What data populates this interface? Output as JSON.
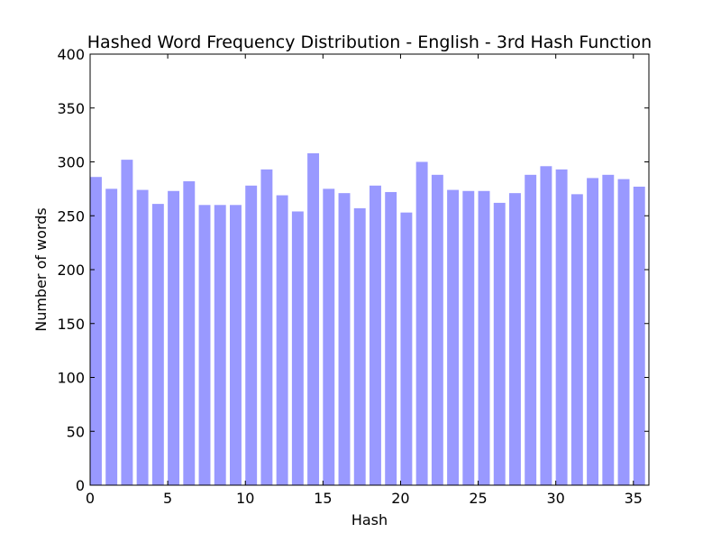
{
  "chart_data": {
    "type": "bar",
    "title": "Hashed Word Frequency Distribution - English - 3rd Hash Function",
    "xlabel": "Hash",
    "ylabel": "Number of words",
    "xlim": [
      0,
      36
    ],
    "ylim": [
      0,
      400
    ],
    "xticks": [
      0,
      5,
      10,
      15,
      20,
      25,
      30,
      35
    ],
    "yticks": [
      0,
      50,
      100,
      150,
      200,
      250,
      300,
      350,
      400
    ],
    "bar_width": 0.75,
    "bar_color": "#9999ff",
    "grid": false,
    "categories": [
      0,
      1,
      2,
      3,
      4,
      5,
      6,
      7,
      8,
      9,
      10,
      11,
      12,
      13,
      14,
      15,
      16,
      17,
      18,
      19,
      20,
      21,
      22,
      23,
      24,
      25,
      26,
      27,
      28,
      29,
      30,
      31,
      32,
      33,
      34,
      35
    ],
    "values": [
      286,
      275,
      302,
      274,
      261,
      273,
      282,
      260,
      260,
      260,
      278,
      293,
      269,
      254,
      308,
      275,
      271,
      257,
      278,
      272,
      253,
      300,
      288,
      274,
      273,
      273,
      262,
      271,
      288,
      296,
      293,
      270,
      285,
      288,
      284,
      277
    ]
  }
}
